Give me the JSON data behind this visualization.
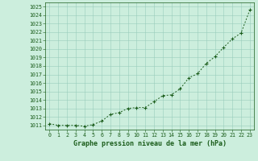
{
  "x": [
    0,
    1,
    2,
    3,
    4,
    5,
    6,
    7,
    8,
    9,
    10,
    11,
    12,
    13,
    14,
    15,
    16,
    17,
    18,
    19,
    20,
    21,
    22,
    23
  ],
  "y": [
    1011.2,
    1011.0,
    1011.0,
    1011.0,
    1010.9,
    1011.1,
    1011.5,
    1012.3,
    1012.5,
    1013.0,
    1013.1,
    1013.1,
    1013.8,
    1014.5,
    1014.6,
    1015.3,
    1016.6,
    1017.1,
    1018.3,
    1019.1,
    1020.2,
    1021.2,
    1021.9,
    1024.6
  ],
  "line_color": "#1a5c1a",
  "marker_color": "#1a5c1a",
  "bg_color": "#cceedd",
  "grid_color": "#99ccbb",
  "xlabel": "Graphe pression niveau de la mer (hPa)",
  "xlabel_color": "#1a5c1a",
  "tick_color": "#1a5c1a",
  "ylim_min": 1010.5,
  "ylim_max": 1025.5,
  "xtick_labels": [
    "0",
    "1",
    "2",
    "3",
    "4",
    "5",
    "6",
    "7",
    "8",
    "9",
    "10",
    "11",
    "12",
    "13",
    "14",
    "15",
    "16",
    "17",
    "18",
    "19",
    "20",
    "21",
    "22",
    "23"
  ]
}
